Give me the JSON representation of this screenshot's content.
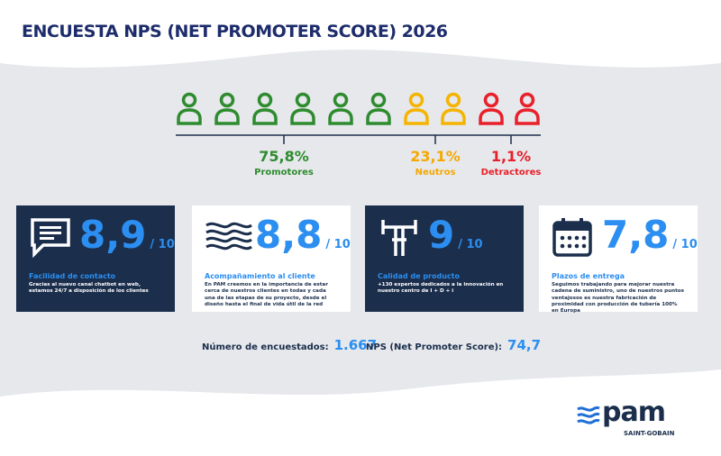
{
  "header": {
    "title": "ENCUESTA NPS (NET PROMOTER SCORE) 2026"
  },
  "segments": [
    {
      "value": "75,8%",
      "label": "Promotores"
    },
    {
      "value": "23,1%",
      "label": "Neutros"
    },
    {
      "value": "1,1%",
      "label": "Detractores"
    }
  ],
  "cards": [
    {
      "score": "8,9",
      "scale": "/ 10",
      "title": "Facilidad de contacto",
      "text": "Gracias al nuevo canal chatbot en web, estamos 24/7 a disposición de los clientes"
    },
    {
      "score": "8,8",
      "scale": "/ 10",
      "title": "Acompañamiento al cliente",
      "text": "En PAM creemos en la importancia de estar cerca de nuestros clientes en todas y cada una de las etapas de su proyecto, desde el diseño hasta el final de vida útil de la red"
    },
    {
      "score": "9",
      "scale": "/ 10",
      "title": "Calidad de producto",
      "text": "+130 expertos dedicados a la innovación en nuestro centro de I + D + i"
    },
    {
      "score": "7,8",
      "scale": "/ 10",
      "title": "Plazos de entrega",
      "text": "Seguimos trabajando para mejorar nuestra cadena de suministro, uno de nuestros puntos ventajosos es nuestra fabricación de proximidad con producción de tubería 100% en Europa"
    }
  ],
  "summary": [
    {
      "label": "Número de encuestados:",
      "value": "1.667"
    },
    {
      "label": "NPS (Net Promoter Score):",
      "value": "74,7"
    }
  ],
  "logo": {
    "name": "pam",
    "sub": "SAINT-GOBAIN"
  }
}
